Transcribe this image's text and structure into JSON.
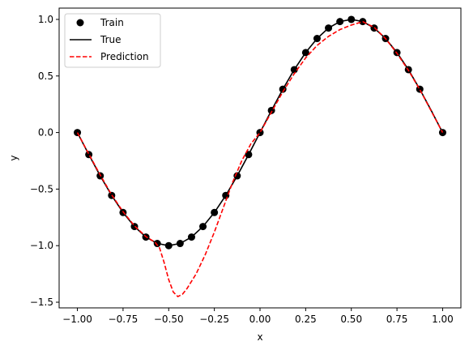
{
  "chart_data": {
    "type": "line",
    "xlabel": "x",
    "ylabel": "y",
    "xlim": [
      -1.1,
      1.1
    ],
    "ylim": [
      -1.55,
      1.1
    ],
    "x_ticks": [
      -1.0,
      -0.75,
      -0.5,
      -0.25,
      0.0,
      0.25,
      0.5,
      0.75,
      1.0
    ],
    "x_tick_labels": [
      "−1.00",
      "−0.75",
      "−0.50",
      "−0.25",
      "0.00",
      "0.25",
      "0.50",
      "0.75",
      "1.00"
    ],
    "y_ticks": [
      -1.5,
      -1.0,
      -0.5,
      0.0,
      0.5,
      1.0
    ],
    "y_tick_labels": [
      "−1.5",
      "−1.0",
      "−0.5",
      "0.0",
      "0.5",
      "1.0"
    ],
    "grid": false,
    "legend_position": "top-left",
    "series": [
      {
        "name": "Train",
        "style": "markers",
        "color": "#000000",
        "x": [
          -1.0,
          -0.9375,
          -0.875,
          -0.8125,
          -0.75,
          -0.6875,
          -0.625,
          -0.5625,
          -0.5,
          -0.4375,
          -0.375,
          -0.3125,
          -0.25,
          -0.1875,
          -0.125,
          -0.0625,
          0.0,
          0.0625,
          0.125,
          0.1875,
          0.25,
          0.3125,
          0.375,
          0.4375,
          0.5,
          0.5625,
          0.625,
          0.6875,
          0.75,
          0.8125,
          0.875,
          1.0
        ],
        "y": [
          0.0,
          -0.195,
          -0.383,
          -0.556,
          -0.707,
          -0.831,
          -0.924,
          -0.981,
          -1.0,
          -0.981,
          -0.924,
          -0.831,
          -0.707,
          -0.556,
          -0.383,
          -0.195,
          0.0,
          0.195,
          0.383,
          0.556,
          0.707,
          0.831,
          0.924,
          0.981,
          1.0,
          0.981,
          0.924,
          0.831,
          0.707,
          0.556,
          0.383,
          0.0
        ]
      },
      {
        "name": "True",
        "style": "solid",
        "color": "#000000",
        "x": [
          -1.0,
          -0.9375,
          -0.875,
          -0.8125,
          -0.75,
          -0.6875,
          -0.625,
          -0.5625,
          -0.5,
          -0.4375,
          -0.375,
          -0.3125,
          -0.25,
          -0.1875,
          -0.125,
          -0.0625,
          0.0,
          0.0625,
          0.125,
          0.1875,
          0.25,
          0.3125,
          0.375,
          0.4375,
          0.5,
          0.5625,
          0.625,
          0.6875,
          0.75,
          0.8125,
          0.875,
          0.9375,
          1.0
        ],
        "y": [
          0.0,
          -0.195,
          -0.383,
          -0.556,
          -0.707,
          -0.831,
          -0.924,
          -0.981,
          -1.0,
          -0.981,
          -0.924,
          -0.831,
          -0.707,
          -0.556,
          -0.383,
          -0.195,
          0.0,
          0.195,
          0.383,
          0.556,
          0.707,
          0.831,
          0.924,
          0.981,
          1.0,
          0.981,
          0.924,
          0.831,
          0.707,
          0.556,
          0.383,
          0.195,
          0.0
        ]
      },
      {
        "name": "Prediction",
        "style": "dashed",
        "color": "#ff0000",
        "x": [
          -1.0,
          -0.9375,
          -0.875,
          -0.8125,
          -0.75,
          -0.6875,
          -0.625,
          -0.575,
          -0.55,
          -0.525,
          -0.5,
          -0.475,
          -0.45,
          -0.425,
          -0.4,
          -0.35,
          -0.3,
          -0.25,
          -0.2,
          -0.15,
          -0.1,
          -0.05,
          0.0,
          0.0625,
          0.125,
          0.1875,
          0.25,
          0.3125,
          0.375,
          0.4375,
          0.5,
          0.5625,
          0.625,
          0.6875,
          0.75,
          0.8125,
          0.875,
          0.9375,
          1.0
        ],
        "y": [
          0.0,
          -0.19,
          -0.375,
          -0.55,
          -0.7,
          -0.825,
          -0.92,
          -0.97,
          -1.02,
          -1.15,
          -1.3,
          -1.41,
          -1.45,
          -1.43,
          -1.38,
          -1.25,
          -1.08,
          -0.88,
          -0.66,
          -0.44,
          -0.25,
          -0.1,
          0.0,
          0.18,
          0.36,
          0.52,
          0.66,
          0.77,
          0.85,
          0.91,
          0.95,
          0.98,
          0.93,
          0.83,
          0.7,
          0.55,
          0.38,
          0.19,
          0.0
        ]
      }
    ]
  }
}
